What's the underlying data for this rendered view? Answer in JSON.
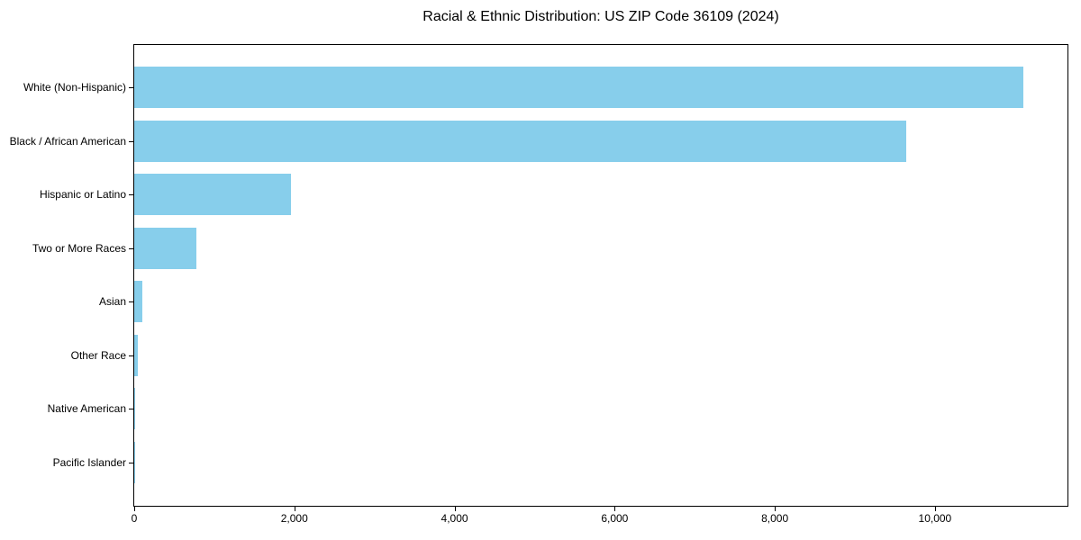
{
  "chart_data": {
    "type": "bar",
    "orientation": "horizontal",
    "title": "Racial & Ethnic Distribution: US ZIP Code 36109 (2024)",
    "categories": [
      "White (Non-Hispanic)",
      "Black / African American",
      "Hispanic or Latino",
      "Two or More Races",
      "Asian",
      "Other Race",
      "Native American",
      "Pacific Islander"
    ],
    "values": [
      11100,
      9640,
      1960,
      780,
      105,
      50,
      10,
      4
    ],
    "xlabel": "",
    "ylabel": "",
    "xlim": [
      0,
      11655
    ],
    "x_ticks": [
      0,
      2000,
      4000,
      6000,
      8000,
      10000
    ],
    "x_tick_labels": [
      "0",
      "2,000",
      "4,000",
      "6,000",
      "8,000",
      "10,000"
    ],
    "bar_color": "#87CEEB",
    "background_color": "#ffffff",
    "spine_color": "#000000",
    "grid": false,
    "legend": false
  }
}
